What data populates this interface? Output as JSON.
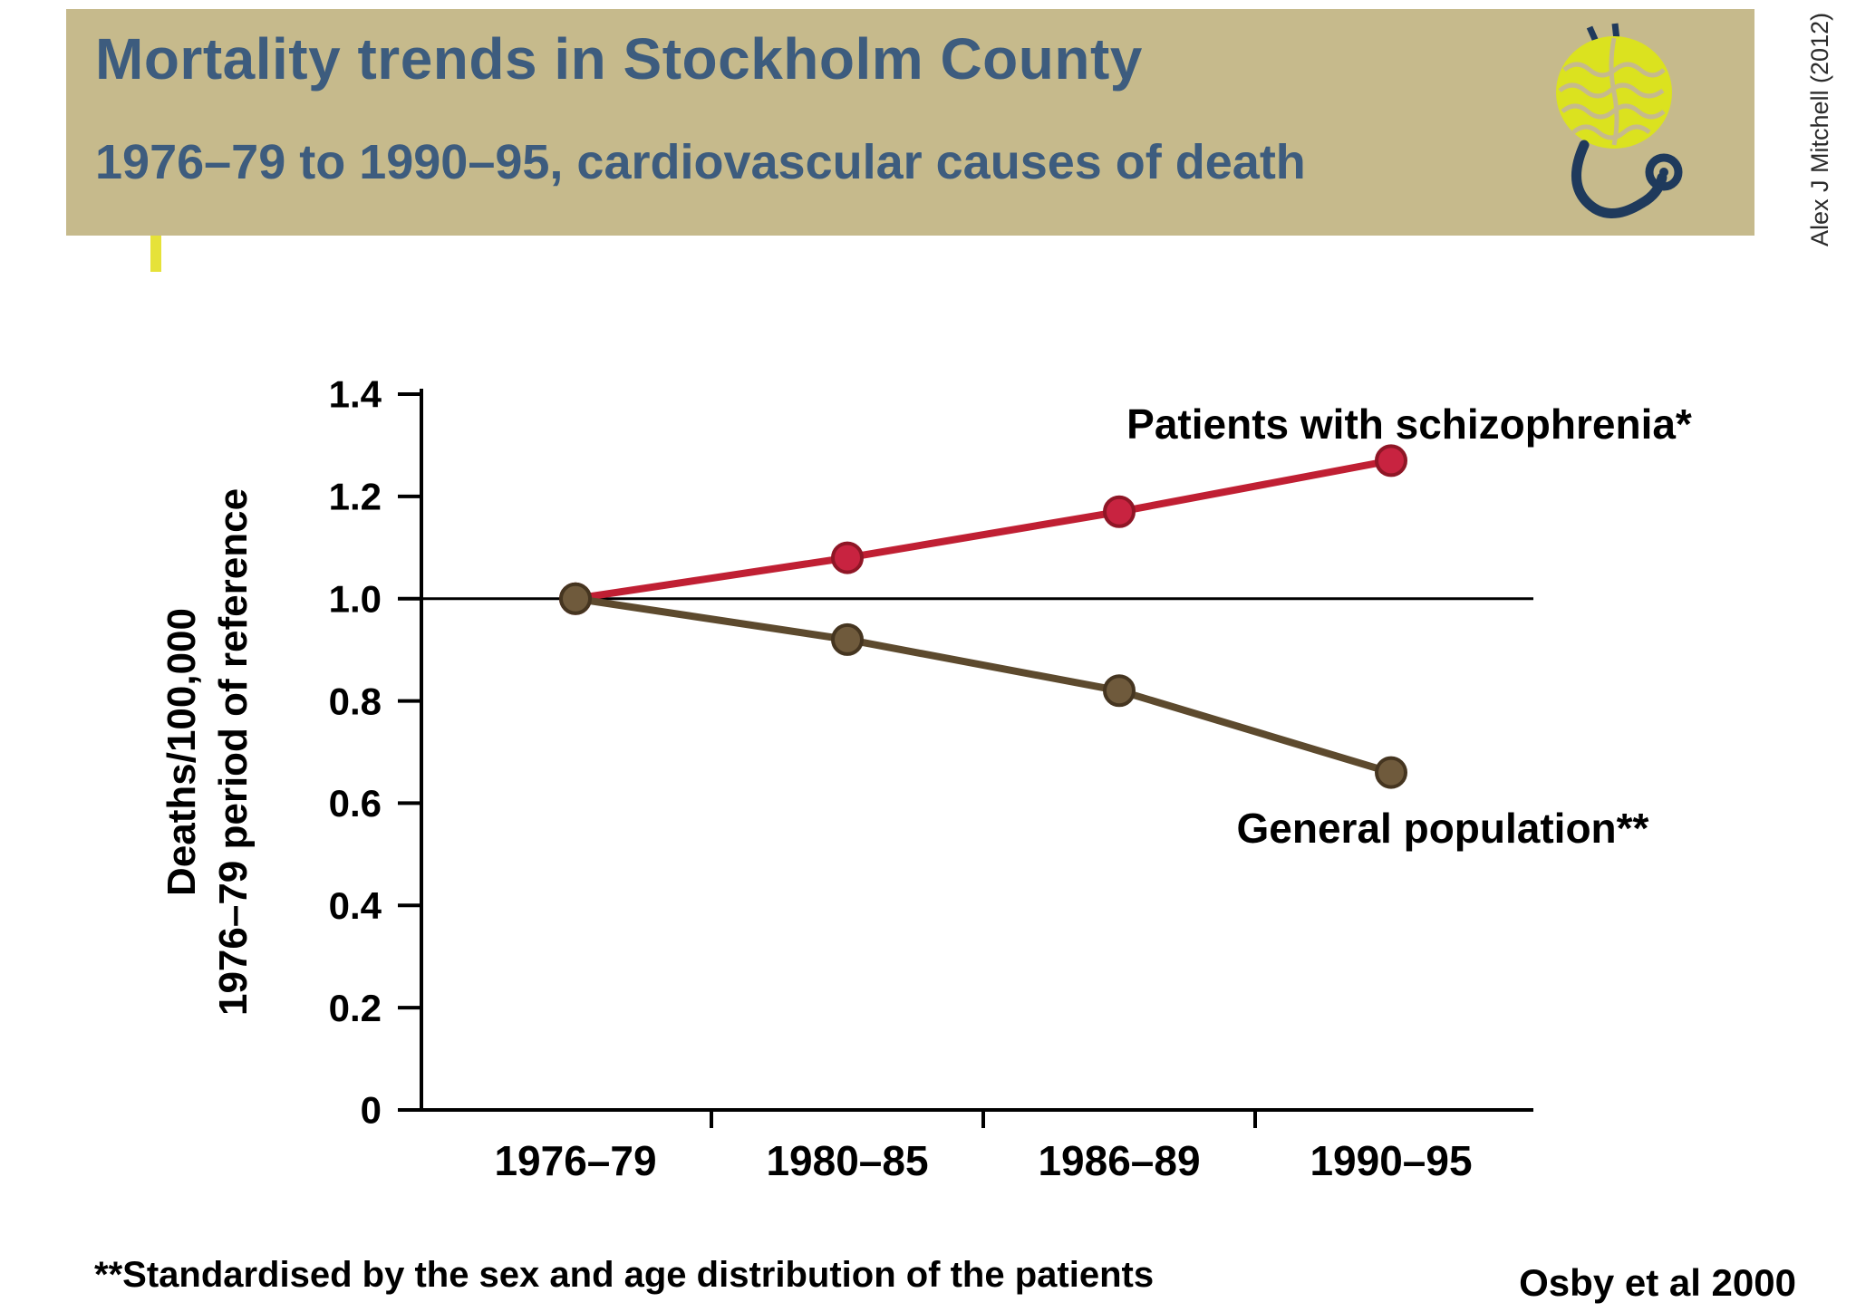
{
  "header": {
    "title": "Mortality trends in Stockholm County",
    "subtitle": "1976–79 to 1990–95, cardiovascular causes of death",
    "credit": "Alex J Mitchell (2012)",
    "logo_icon": "brain-with-stethoscope"
  },
  "chart_data": {
    "type": "line",
    "categories": [
      "1976–79",
      "1980–85",
      "1986–89",
      "1990–95"
    ],
    "series": [
      {
        "name": "Patients with schizophrenia*",
        "color": "#c01f33",
        "point_fill": "#c82340",
        "point_stroke": "#8f1626",
        "values": [
          1.0,
          1.08,
          1.17,
          1.27
        ]
      },
      {
        "name": "General population**",
        "color": "#5d4a2e",
        "point_fill": "#6f5a3c",
        "point_stroke": "#453520",
        "values": [
          1.0,
          0.92,
          0.82,
          0.66
        ]
      }
    ],
    "ylabel": [
      "Deaths/100,000",
      "1976–79 period of reference"
    ],
    "xlabel": "",
    "yticks": [
      "0",
      "0.2",
      "0.4",
      "0.6",
      "0.8",
      "1.0",
      "1.2",
      "1.4"
    ],
    "ylim": [
      0,
      1.4
    ],
    "reference_line": 1.0,
    "grid": false,
    "legend_position": "inline-annotations"
  },
  "footer": {
    "note": "**Standardised by the sex and age distribution of the patients",
    "citation": "Osby et al 2000"
  },
  "colors": {
    "header_bg": "#c6ba8c",
    "title_text": "#3d5c7e",
    "accent_yellow": "#e6e239",
    "logo_yellow": "#dbe21f",
    "logo_navy": "#1f3a5c",
    "axis": "#000000"
  }
}
